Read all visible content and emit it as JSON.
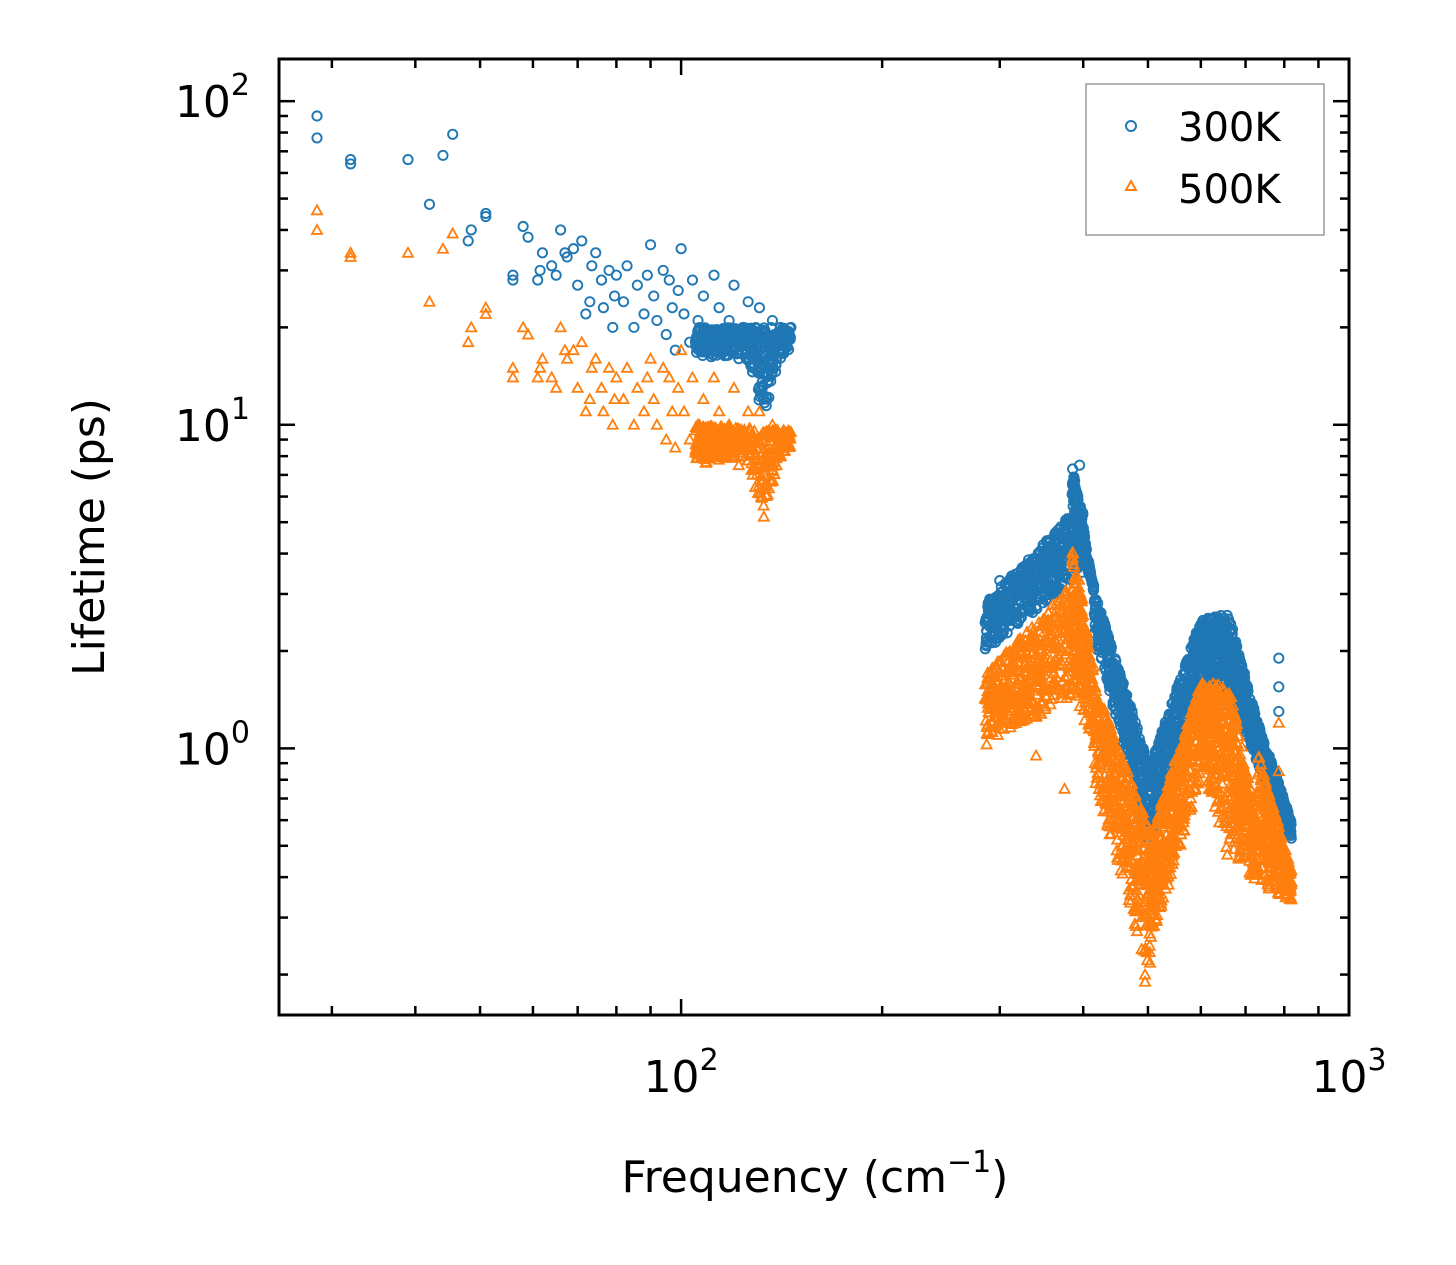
{
  "chart_data": {
    "type": "scatter",
    "title": "",
    "xlabel": "Frequency (cm",
    "xlabel_superscript": "−1",
    "xlabel_suffix": ")",
    "ylabel": "Lifetime (ps)",
    "xscale": "log",
    "yscale": "log",
    "xlim": [
      25,
      1000
    ],
    "ylim": [
      0.15,
      135
    ],
    "x_major_ticks": [
      {
        "value": 100,
        "base": "10",
        "exponent": "2"
      },
      {
        "value": 1000,
        "base": "10",
        "exponent": "3"
      }
    ],
    "y_major_ticks": [
      {
        "value": 1,
        "base": "10",
        "exponent": "0"
      },
      {
        "value": 10,
        "base": "10",
        "exponent": "1"
      },
      {
        "value": 100,
        "base": "10",
        "exponent": "2"
      }
    ],
    "legend_position": "top-right",
    "series": [
      {
        "name": "300K",
        "marker": "circle-open",
        "color": "#1f77b4",
        "points": [
          [
            28.5,
            90
          ],
          [
            28.5,
            77
          ],
          [
            32,
            66
          ],
          [
            32,
            64
          ],
          [
            39,
            66
          ],
          [
            42,
            48
          ],
          [
            44,
            68
          ],
          [
            45.5,
            79
          ],
          [
            48,
            37
          ],
          [
            48.5,
            40
          ],
          [
            51,
            45
          ],
          [
            51,
            44
          ],
          [
            56,
            29
          ],
          [
            56,
            28
          ],
          [
            58,
            41
          ],
          [
            59,
            38
          ],
          [
            61,
            28
          ],
          [
            61.5,
            30
          ],
          [
            62,
            34
          ],
          [
            64,
            31
          ],
          [
            65,
            29
          ],
          [
            66,
            40
          ],
          [
            67,
            34
          ],
          [
            67.5,
            33
          ],
          [
            69,
            35
          ],
          [
            70,
            27
          ],
          [
            71,
            37
          ],
          [
            72,
            22
          ],
          [
            73,
            24
          ],
          [
            73.5,
            31
          ],
          [
            74.5,
            34
          ],
          [
            76,
            28
          ],
          [
            76.5,
            23
          ],
          [
            78,
            30
          ],
          [
            79,
            20
          ],
          [
            79.5,
            25
          ],
          [
            80,
            29
          ],
          [
            82,
            24
          ],
          [
            83,
            31
          ],
          [
            85,
            20
          ],
          [
            86,
            27
          ],
          [
            88,
            22
          ],
          [
            89,
            29
          ],
          [
            90,
            36
          ],
          [
            91,
            25
          ],
          [
            92,
            21
          ],
          [
            94,
            30
          ],
          [
            95,
            19
          ],
          [
            96,
            28
          ],
          [
            97,
            23
          ],
          [
            98,
            17
          ],
          [
            99,
            26
          ],
          [
            100,
            35
          ],
          [
            101,
            22
          ],
          [
            103,
            18
          ],
          [
            104,
            28
          ],
          [
            106,
            21
          ],
          [
            108,
            25
          ],
          [
            110,
            19
          ],
          [
            112,
            29
          ],
          [
            114,
            23
          ],
          [
            116,
            17
          ],
          [
            118,
            21
          ],
          [
            120,
            27
          ],
          [
            122,
            16
          ],
          [
            124,
            20
          ],
          [
            126,
            24
          ],
          [
            128,
            15
          ],
          [
            130,
            19
          ],
          [
            131,
            23
          ],
          [
            133,
            12
          ],
          [
            135,
            18
          ],
          [
            137,
            21
          ],
          [
            139,
            16
          ],
          [
            141,
            19
          ],
          [
            143,
            18
          ],
          [
            146,
            20
          ]
        ],
        "bands": [
          {
            "x_start": 105,
            "x_end": 146,
            "y_low_start": 16,
            "y_low_end": 17,
            "y_high_start": 20,
            "y_high_end": 20,
            "y_low_mid": 11,
            "count": 380
          },
          {
            "x_start": 285,
            "x_end": 400,
            "y_low_start": 2.0,
            "y_low_end": 3.5,
            "y_high_start": 2.8,
            "y_high_end": 5.8,
            "count": 520
          },
          {
            "x_start": 385,
            "x_end": 415,
            "y_low_start": 4.5,
            "y_low_end": 3.2,
            "y_high_start": 7.9,
            "y_high_end": 3.0,
            "count": 150
          },
          {
            "x_start": 415,
            "x_end": 505,
            "y_low_start": 2.2,
            "y_low_end": 0.48,
            "y_high_start": 3.1,
            "y_high_end": 0.85,
            "count": 430
          },
          {
            "x_start": 505,
            "x_end": 600,
            "y_low_start": 0.5,
            "y_low_end": 1.5,
            "y_high_start": 0.9,
            "y_high_end": 2.5,
            "count": 430
          },
          {
            "x_start": 600,
            "x_end": 660,
            "y_low_start": 1.8,
            "y_low_end": 1.3,
            "y_high_start": 2.5,
            "y_high_end": 2.6,
            "count": 250
          },
          {
            "x_start": 660,
            "x_end": 730,
            "y_low_start": 1.4,
            "y_low_end": 0.9,
            "y_high_start": 2.6,
            "y_high_end": 1.2,
            "count": 260
          },
          {
            "x_start": 730,
            "x_end": 820,
            "y_low_start": 0.9,
            "y_low_end": 0.52,
            "y_high_start": 1.2,
            "y_high_end": 0.6,
            "count": 280
          }
        ],
        "extra_points": [
          [
            575,
            1.8
          ],
          [
            785,
            1.9
          ],
          [
            785,
            1.55
          ],
          [
            785,
            1.3
          ],
          [
            540,
            0.95
          ],
          [
            300,
            3.3
          ],
          [
            395,
            7.5
          ]
        ]
      },
      {
        "name": "500K",
        "marker": "triangle-open",
        "color": "#ff7f0e",
        "points": [
          [
            28.5,
            46
          ],
          [
            28.5,
            40
          ],
          [
            32,
            34
          ],
          [
            32,
            33
          ],
          [
            39,
            34
          ],
          [
            42,
            24
          ],
          [
            44,
            35
          ],
          [
            45.5,
            39
          ],
          [
            48,
            18
          ],
          [
            48.5,
            20
          ],
          [
            51,
            22
          ],
          [
            51,
            23
          ],
          [
            56,
            15
          ],
          [
            56,
            14
          ],
          [
            58,
            20
          ],
          [
            59,
            19
          ],
          [
            61,
            14
          ],
          [
            61.5,
            15
          ],
          [
            62,
            16
          ],
          [
            64,
            14
          ],
          [
            65,
            13
          ],
          [
            66,
            20
          ],
          [
            67,
            17
          ],
          [
            67.5,
            16
          ],
          [
            69,
            17
          ],
          [
            70,
            13
          ],
          [
            71,
            18
          ],
          [
            72,
            11
          ],
          [
            73,
            12
          ],
          [
            73.5,
            15
          ],
          [
            74.5,
            16
          ],
          [
            76,
            13
          ],
          [
            76.5,
            11
          ],
          [
            78,
            15
          ],
          [
            79,
            10
          ],
          [
            79.5,
            12
          ],
          [
            80,
            14
          ],
          [
            82,
            12
          ],
          [
            83,
            15
          ],
          [
            85,
            10
          ],
          [
            86,
            13
          ],
          [
            88,
            11
          ],
          [
            89,
            14
          ],
          [
            90,
            16
          ],
          [
            91,
            12
          ],
          [
            92,
            10
          ],
          [
            94,
            15
          ],
          [
            95,
            9
          ],
          [
            96,
            14
          ],
          [
            97,
            11
          ],
          [
            98,
            8.5
          ],
          [
            99,
            13
          ],
          [
            100,
            17
          ],
          [
            101,
            11
          ],
          [
            103,
            9
          ],
          [
            104,
            14
          ],
          [
            106,
            10
          ],
          [
            108,
            12
          ],
          [
            110,
            9
          ],
          [
            112,
            14
          ],
          [
            114,
            11
          ],
          [
            116,
            8
          ],
          [
            118,
            10
          ],
          [
            120,
            13
          ],
          [
            122,
            7.5
          ],
          [
            124,
            9.5
          ],
          [
            126,
            11
          ],
          [
            128,
            7
          ],
          [
            130,
            9
          ],
          [
            131,
            11
          ],
          [
            133,
            5.2
          ],
          [
            135,
            8
          ],
          [
            137,
            10
          ],
          [
            139,
            7.5
          ],
          [
            141,
            9
          ],
          [
            143,
            9
          ],
          [
            146,
            9.5
          ]
        ],
        "bands": [
          {
            "x_start": 105,
            "x_end": 146,
            "y_low_start": 7.5,
            "y_low_end": 8.5,
            "y_high_start": 10,
            "y_high_end": 9.6,
            "y_low_mid": 5.2,
            "count": 380
          },
          {
            "x_start": 285,
            "x_end": 400,
            "y_low_start": 1.0,
            "y_low_end": 1.5,
            "y_high_start": 1.7,
            "y_high_end": 3.5,
            "count": 520
          },
          {
            "x_start": 385,
            "x_end": 415,
            "y_low_start": 1.5,
            "y_low_end": 1.0,
            "y_high_start": 4.3,
            "y_high_end": 1.8,
            "count": 150
          },
          {
            "x_start": 415,
            "x_end": 505,
            "y_low_start": 0.8,
            "y_low_end": 0.19,
            "y_high_start": 1.6,
            "y_high_end": 0.55,
            "count": 430
          },
          {
            "x_start": 505,
            "x_end": 600,
            "y_low_start": 0.25,
            "y_low_end": 0.8,
            "y_high_start": 0.55,
            "y_high_end": 1.6,
            "count": 430
          },
          {
            "x_start": 600,
            "x_end": 660,
            "y_low_start": 0.9,
            "y_low_end": 0.45,
            "y_high_start": 1.6,
            "y_high_end": 1.6,
            "count": 250
          },
          {
            "x_start": 660,
            "x_end": 730,
            "y_low_start": 0.5,
            "y_low_end": 0.38,
            "y_high_start": 1.6,
            "y_high_end": 0.6,
            "count": 260
          },
          {
            "x_start": 730,
            "x_end": 820,
            "y_low_start": 0.38,
            "y_low_end": 0.34,
            "y_high_start": 1.0,
            "y_high_end": 0.42,
            "count": 280
          }
        ],
        "extra_points": [
          [
            785,
            0.85
          ],
          [
            785,
            1.2
          ],
          [
            495,
            0.2
          ],
          [
            495,
            0.19
          ],
          [
            375,
            0.75
          ],
          [
            340,
            0.95
          ]
        ]
      }
    ]
  }
}
